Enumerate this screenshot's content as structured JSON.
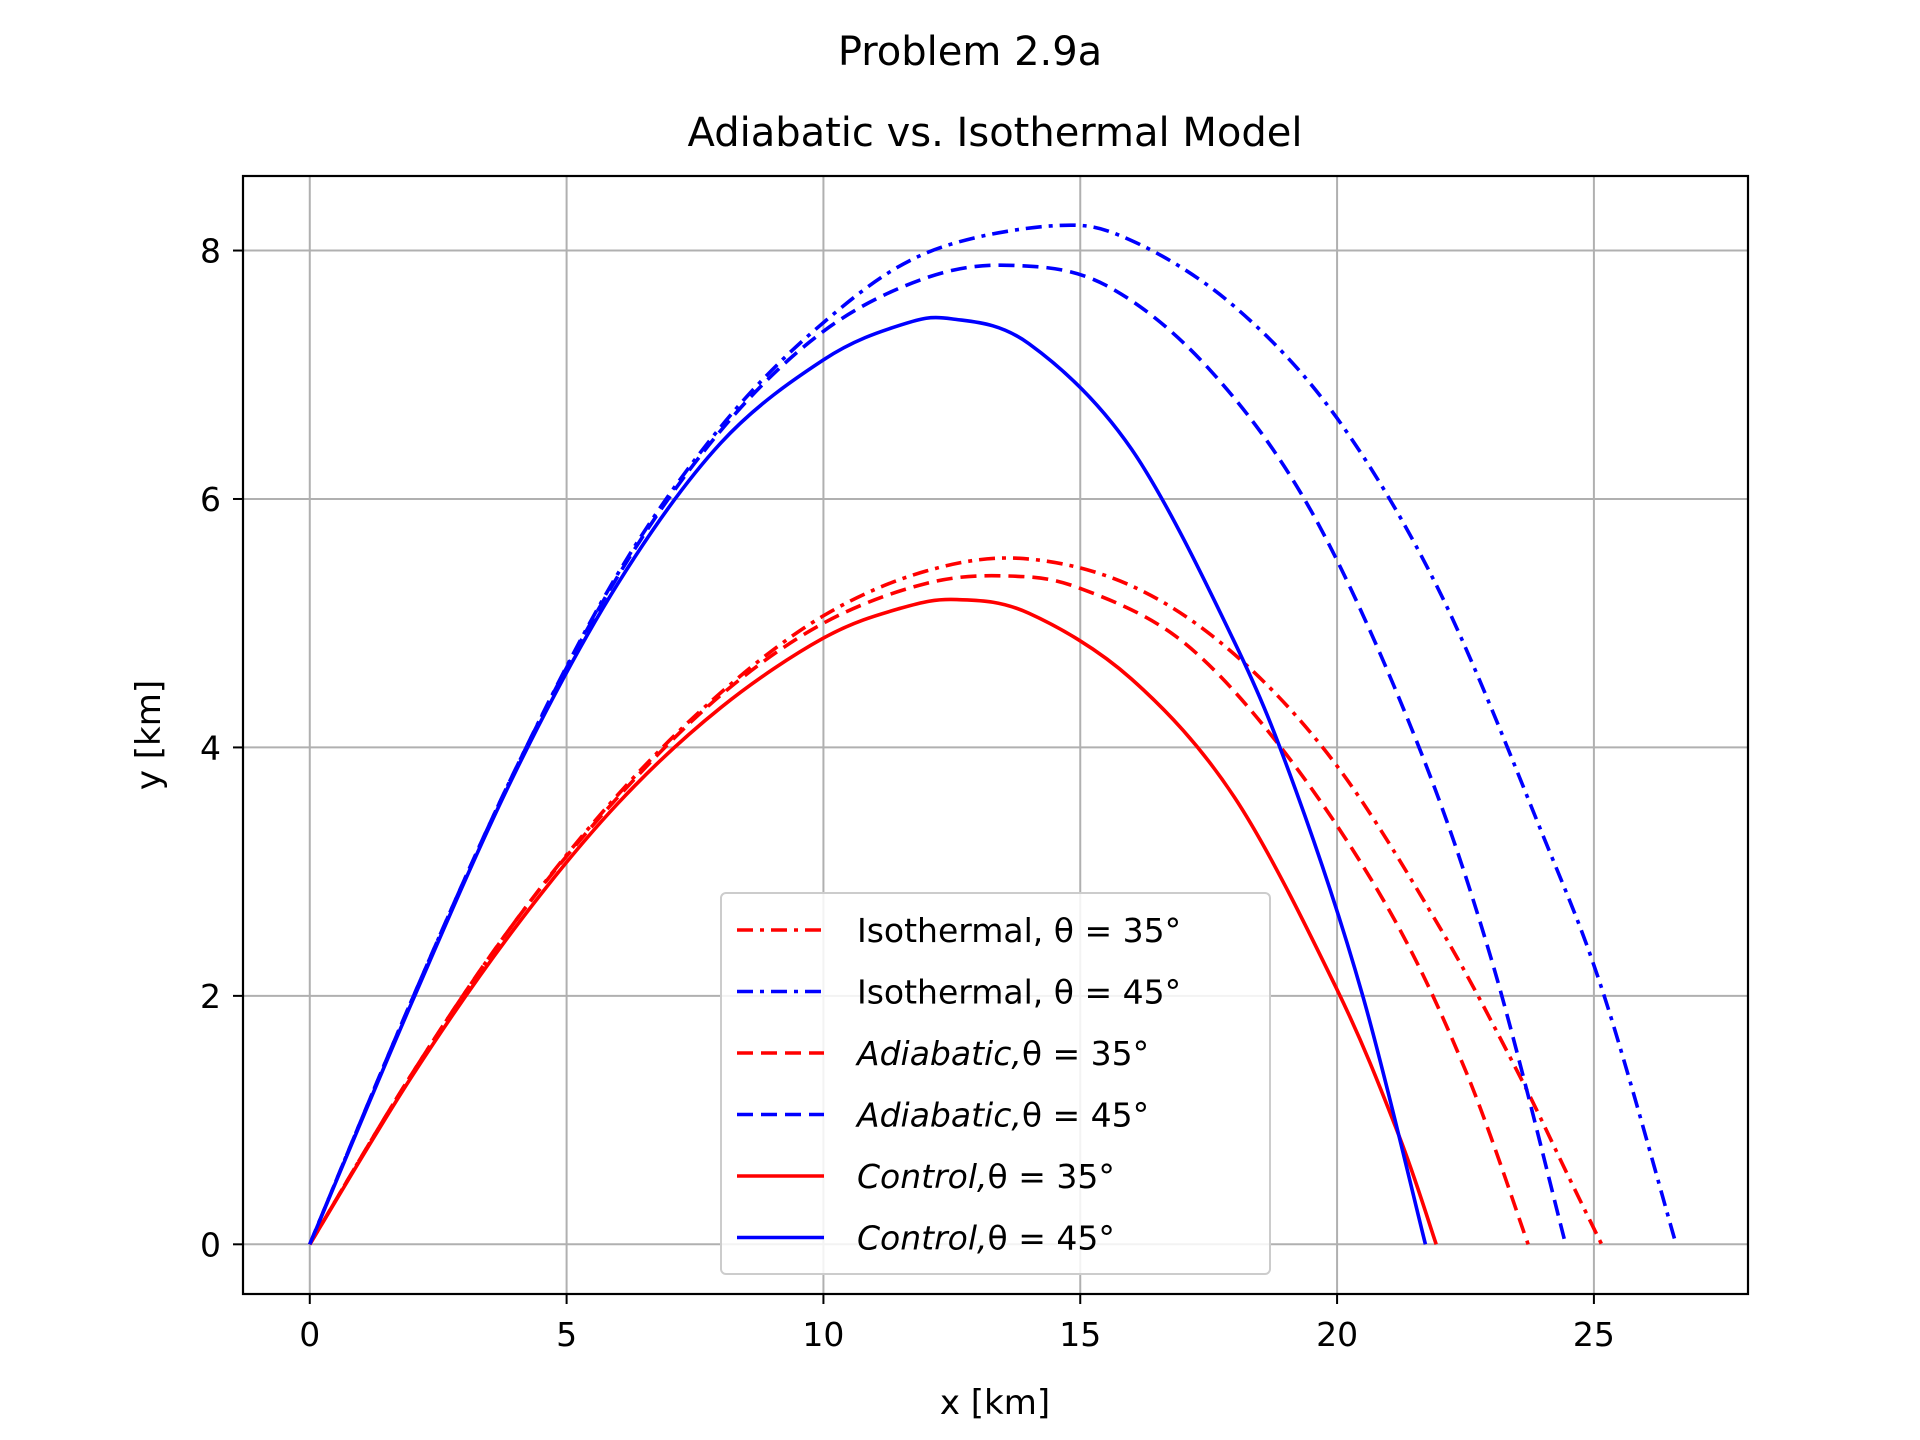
{
  "chart_data": {
    "type": "line",
    "suptitle": "Problem 2.9a",
    "title": "Adiabatic vs. Isothermal Model",
    "xlabel": "x [km]",
    "ylabel": "y [km]",
    "xlim": [
      -1.3,
      28.0
    ],
    "ylim": [
      -0.4,
      8.6
    ],
    "xticks": [
      0,
      5,
      10,
      15,
      20,
      25
    ],
    "yticks": [
      0,
      2,
      4,
      6,
      8
    ],
    "grid": true,
    "legend_position": "lower center",
    "series": [
      {
        "name": "Isothermal, θ = 35°",
        "name_parts": {
          "model": "Isothermal,",
          "eq": " θ = 35°"
        },
        "color": "#ff0000",
        "style": "dashdot",
        "x": [
          0,
          2,
          4,
          6,
          8,
          10,
          12,
          13.9,
          16,
          18,
          20,
          22,
          23.5,
          24.5,
          25.15
        ],
        "y": [
          0,
          1.38,
          2.6,
          3.62,
          4.44,
          5.06,
          5.42,
          5.52,
          5.3,
          4.75,
          3.85,
          2.55,
          1.4,
          0.55,
          0
        ]
      },
      {
        "name": "Isothermal, θ = 45°",
        "name_parts": {
          "model": "Isothermal,",
          "eq": " θ = 45°"
        },
        "color": "#0000ff",
        "style": "dashdot",
        "x": [
          0,
          2,
          4,
          6,
          8,
          10,
          12,
          14.5,
          16,
          18,
          20,
          22,
          24,
          25.2,
          26.6
        ],
        "y": [
          0,
          1.98,
          3.82,
          5.4,
          6.58,
          7.42,
          7.98,
          8.2,
          8.08,
          7.55,
          6.65,
          5.25,
          3.3,
          2.0,
          0
        ]
      },
      {
        "name": "Adiabatic, θ = 35°",
        "name_parts": {
          "model": "Adiabatic,",
          "eq": "θ = 35°"
        },
        "color": "#ff0000",
        "style": "dashed",
        "x": [
          0,
          2,
          4,
          6,
          8,
          10,
          12,
          13.6,
          15,
          17,
          19,
          21,
          22.5,
          23.72
        ],
        "y": [
          0,
          1.38,
          2.6,
          3.6,
          4.42,
          5.0,
          5.32,
          5.38,
          5.28,
          4.85,
          3.95,
          2.7,
          1.4,
          0
        ]
      },
      {
        "name": "Adiabatic, θ = 45°",
        "name_parts": {
          "model": "Adiabatic,",
          "eq": "θ = 45°"
        },
        "color": "#0000ff",
        "style": "dashed",
        "x": [
          0,
          2,
          4,
          6,
          8,
          10,
          12,
          13.7,
          15.5,
          17.5,
          19.5,
          21.5,
          23,
          24.45
        ],
        "y": [
          0,
          1.98,
          3.82,
          5.38,
          6.55,
          7.35,
          7.78,
          7.88,
          7.72,
          7.05,
          5.9,
          4.1,
          2.3,
          0
        ]
      },
      {
        "name": "Control, θ = 35°",
        "name_parts": {
          "model": "Control,",
          "eq": "θ = 35°"
        },
        "color": "#ff0000",
        "style": "solid",
        "x": [
          0,
          2,
          4,
          6,
          8,
          10,
          11.5,
          12.6,
          14,
          16,
          18,
          20,
          21.2,
          21.93
        ],
        "y": [
          0,
          1.36,
          2.55,
          3.55,
          4.32,
          4.88,
          5.12,
          5.19,
          5.08,
          4.55,
          3.6,
          2.05,
          0.88,
          0
        ]
      },
      {
        "name": "Control, θ = 45°",
        "name_parts": {
          "model": "Control,",
          "eq": "θ = 45°"
        },
        "color": "#0000ff",
        "style": "solid",
        "x": [
          0,
          2,
          4,
          6,
          8,
          10,
          11.5,
          12.5,
          14,
          16,
          18,
          19.2,
          20.5,
          21.72
        ],
        "y": [
          0,
          1.96,
          3.8,
          5.32,
          6.45,
          7.12,
          7.4,
          7.45,
          7.25,
          6.4,
          4.85,
          3.65,
          2.0,
          0
        ]
      }
    ]
  }
}
